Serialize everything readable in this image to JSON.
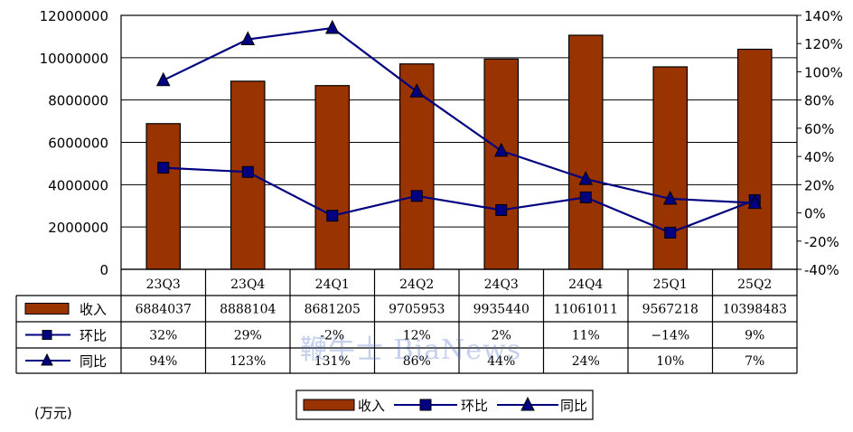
{
  "chart_data": {
    "type": "bar",
    "categories": [
      "23Q3",
      "23Q4",
      "24Q1",
      "24Q2",
      "24Q3",
      "24Q4",
      "25Q1",
      "25Q2"
    ],
    "series": [
      {
        "name": "收入",
        "type": "bar",
        "axis": "left",
        "values": [
          6884037,
          8888104,
          8681205,
          9705953,
          9935440,
          11061011,
          9567218,
          10398483
        ],
        "labels": [
          "6884037",
          "8888104",
          "8681205",
          "9705953",
          "9935440",
          "11061011",
          "9567218",
          "10398483"
        ]
      },
      {
        "name": "环比",
        "type": "line",
        "marker": "square",
        "axis": "right",
        "values": [
          32,
          29,
          -2,
          12,
          2,
          11,
          -14,
          9
        ],
        "labels": [
          "32%",
          "29%",
          "-2%",
          "12%",
          "2%",
          "11%",
          "−14%",
          "9%"
        ]
      },
      {
        "name": "同比",
        "type": "line",
        "marker": "triangle",
        "axis": "right",
        "values": [
          94,
          123,
          131,
          86,
          44,
          24,
          10,
          7
        ],
        "labels": [
          "94%",
          "123%",
          "131%",
          "86%",
          "44%",
          "24%",
          "10%",
          "7%"
        ]
      }
    ],
    "y_left": {
      "min": 0,
      "max": 12000000,
      "step": 2000000,
      "ticks": [
        "0",
        "2000000",
        "4000000",
        "6000000",
        "8000000",
        "10000000",
        "12000000"
      ]
    },
    "y_right": {
      "min": -40,
      "max": 140,
      "step": 20,
      "ticks": [
        "-40%",
        "-20%",
        "0%",
        "20%",
        "40%",
        "60%",
        "80%",
        "100%",
        "120%",
        "140%"
      ]
    },
    "grid": true,
    "legend_position": "bottom-center",
    "colors": {
      "bar": "#993300",
      "line": "#000080"
    }
  },
  "unit_label": "(万元)",
  "watermark": "鞭牛士 BiaNews"
}
